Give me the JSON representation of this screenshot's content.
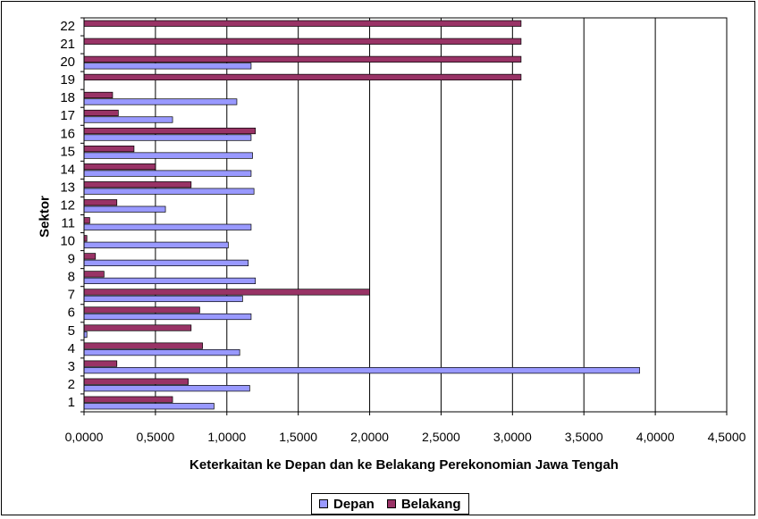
{
  "chart_data": {
    "type": "bar",
    "orientation": "horizontal",
    "categories": [
      "1",
      "2",
      "3",
      "4",
      "5",
      "6",
      "7",
      "8",
      "9",
      "10",
      "11",
      "12",
      "13",
      "14",
      "15",
      "16",
      "17",
      "18",
      "19",
      "20",
      "21",
      "22"
    ],
    "series": [
      {
        "name": "Depan",
        "color": "#9999ff",
        "values": [
          0.91,
          1.16,
          3.89,
          1.09,
          0.02,
          1.17,
          1.11,
          1.2,
          1.15,
          1.01,
          1.17,
          0.57,
          1.19,
          1.17,
          1.18,
          1.17,
          0.62,
          1.07,
          0,
          1.17,
          0,
          0
        ]
      },
      {
        "name": "Belakang",
        "color": "#993366",
        "values": [
          0.62,
          0.73,
          0.23,
          0.83,
          0.75,
          0.81,
          2.0,
          0.14,
          0.08,
          0.02,
          0.04,
          0.23,
          0.75,
          0.5,
          0.35,
          1.2,
          0.24,
          0.2,
          3.06,
          3.06,
          3.06,
          3.06
        ]
      }
    ],
    "xlim": [
      0,
      4.5
    ],
    "xticks": [
      "0,0000",
      "0,5000",
      "1,0000",
      "1,5000",
      "2,0000",
      "2,5000",
      "3,0000",
      "3,5000",
      "4,0000",
      "4,5000"
    ],
    "xlabel": "Keterkaitan ke Depan dan ke Belakang Perekonomian Jawa Tengah",
    "ylabel": "Sektor",
    "grid": "vertical",
    "legend_position": "bottom"
  }
}
